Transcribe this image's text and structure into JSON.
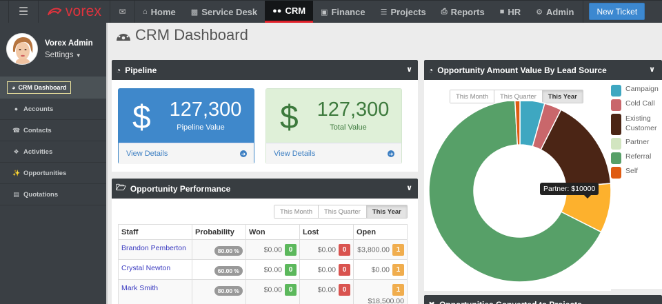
{
  "topnav": {
    "menu_icon": "hamburger-icon",
    "brand": "vorex",
    "mail_icon": "envelope-icon",
    "items": [
      {
        "label": "Home",
        "icon": "home-icon",
        "active": false
      },
      {
        "label": "Service Desk",
        "icon": "sitemap-icon",
        "active": false
      },
      {
        "label": "CRM",
        "icon": "users-icon",
        "active": true
      },
      {
        "label": "Finance",
        "icon": "money-icon",
        "active": false
      },
      {
        "label": "Projects",
        "icon": "tasks-icon",
        "active": false
      },
      {
        "label": "Reports",
        "icon": "print-icon",
        "active": false
      },
      {
        "label": "HR",
        "icon": "briefcase-icon",
        "active": false
      },
      {
        "label": "Admin",
        "icon": "gear-icon",
        "active": false
      }
    ],
    "new_ticket": "New Ticket"
  },
  "sidebar": {
    "user_name": "Vorex Admin",
    "settings": "Settings",
    "items": [
      {
        "label": "CRM Dashboard",
        "icon": "dashboard-icon",
        "active": true
      },
      {
        "label": "Accounts",
        "icon": "users-icon"
      },
      {
        "label": "Contacts",
        "icon": "phone-icon"
      },
      {
        "label": "Activities",
        "icon": "cubes-icon"
      },
      {
        "label": "Opportunities",
        "icon": "magic-wand-icon"
      },
      {
        "label": "Quotations",
        "icon": "file-text-icon"
      }
    ]
  },
  "page": {
    "title": "CRM Dashboard"
  },
  "pipeline": {
    "title": "Pipeline",
    "cards": [
      {
        "value": "127,300",
        "label": "Pipeline Value",
        "currency": "$",
        "link": "View Details"
      },
      {
        "value": "127,300",
        "label": "Total Value",
        "currency": "$",
        "link": "View Details"
      }
    ]
  },
  "performance": {
    "title": "Opportunity Performance",
    "periods": [
      "This Month",
      "This Quarter",
      "This Year"
    ],
    "selected_period": "This Year",
    "columns": [
      "Staff",
      "Probability",
      "Won",
      "Lost",
      "Open"
    ],
    "rows": [
      {
        "staff": "Brandon Pemberton",
        "probability": "80.00 %",
        "won": "$0.00",
        "won_count": "0",
        "lost": "$0.00",
        "lost_count": "0",
        "open": "$3,800.00",
        "open_count": "1"
      },
      {
        "staff": "Crystal Newton",
        "probability": "60.00 %",
        "won": "$0.00",
        "won_count": "0",
        "lost": "$0.00",
        "lost_count": "0",
        "open": "$0.00",
        "open_count": "1"
      },
      {
        "staff": "Mark Smith",
        "probability": "80.00 %",
        "won": "$0.00",
        "won_count": "0",
        "lost": "$0.00",
        "lost_count": "0",
        "open": "$18,500.00",
        "open_count": "1"
      }
    ]
  },
  "lead_source": {
    "title": "Opportunity Amount Value By Lead Source",
    "periods": [
      "This Month",
      "This Quarter",
      "This Year"
    ],
    "selected_period": "This Year",
    "tooltip": "Partner: $10000",
    "legend": [
      {
        "label": "Campaign",
        "color": "#3ea7c1"
      },
      {
        "label": "Cold Call",
        "color": "#c9676b"
      },
      {
        "label": "Existing Customer",
        "color": "#4b2515"
      },
      {
        "label": "Partner",
        "color": "#d2e5c0"
      },
      {
        "label": "Referral",
        "color": "#57a068"
      },
      {
        "label": "Self",
        "color": "#df5c13"
      }
    ]
  },
  "bottom_panel": {
    "title": "Opportunities Converted to Projects"
  },
  "chart_data": {
    "type": "pie",
    "title": "Opportunity Amount Value By Lead Source",
    "donut": true,
    "categories": [
      "Campaign",
      "Cold Call",
      "Existing Customer",
      "Partner",
      "Referral",
      "Self"
    ],
    "values": [
      5000,
      3500,
      18500,
      10000,
      76000,
      1000
    ],
    "colors": [
      "#3ea7c1",
      "#c9676b",
      "#4b2515",
      "#d2e5c0",
      "#57a068",
      "#df5c13"
    ],
    "highlighted": {
      "label": "Partner",
      "value": 10000,
      "hover_color": "#fdb12d"
    },
    "legend_position": "right"
  }
}
